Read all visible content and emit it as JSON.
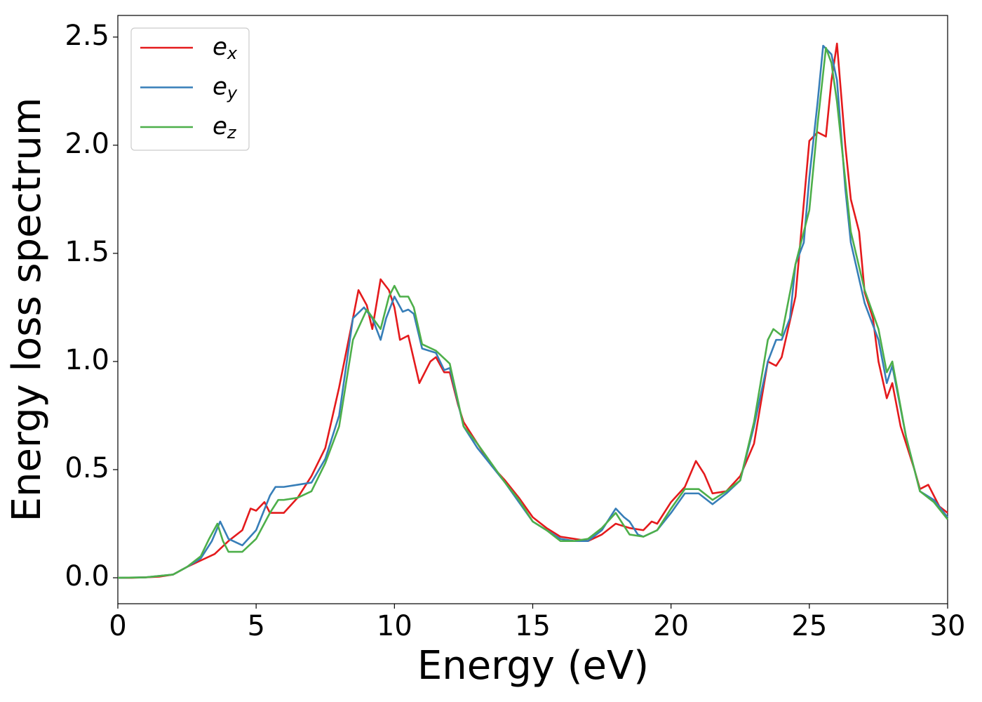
{
  "chart_data": {
    "type": "line",
    "xlabel": "Energy (eV)",
    "ylabel": "Energy loss spectrum",
    "xlim": [
      0,
      30
    ],
    "xticks": [
      0,
      5,
      10,
      15,
      20,
      25,
      30
    ],
    "ylim": [
      -0.12,
      2.6
    ],
    "yticks": [
      {
        "value": 0,
        "label": "0.0"
      },
      {
        "value": 0.5,
        "label": "0.5"
      },
      {
        "value": 1,
        "label": "1.0"
      },
      {
        "value": 1.5,
        "label": "1.5"
      },
      {
        "value": 2,
        "label": "2.0"
      },
      {
        "value": 2.5,
        "label": "2.5"
      }
    ],
    "grid": false,
    "legend": "upper left",
    "series": [
      {
        "name": "e_x",
        "color": "#e41a1c",
        "x": [
          0,
          0.5,
          1,
          1.5,
          2,
          2.5,
          3,
          3.5,
          4,
          4.5,
          4.8,
          5,
          5.3,
          5.5,
          6,
          6.5,
          7,
          7.5,
          8,
          8.5,
          8.7,
          9,
          9.2,
          9.5,
          9.8,
          10,
          10.2,
          10.5,
          10.9,
          11.3,
          11.5,
          11.8,
          12,
          12.3,
          12.5,
          13,
          13.5,
          14,
          14.5,
          15,
          15.5,
          16,
          16.5,
          17,
          17.5,
          18,
          18.5,
          19,
          19.3,
          19.5,
          20,
          20.5,
          20.9,
          21.2,
          21.5,
          22,
          22.5,
          23,
          23.5,
          23.8,
          24,
          24.5,
          25,
          25.3,
          25.6,
          25.8,
          26,
          26.3,
          26.5,
          26.8,
          27,
          27.3,
          27.5,
          27.8,
          28,
          28.3,
          28.8,
          29,
          29.3,
          29.7,
          30
        ],
        "values": [
          0,
          0,
          0.002,
          0.005,
          0.015,
          0.05,
          0.08,
          0.11,
          0.17,
          0.22,
          0.32,
          0.31,
          0.35,
          0.3,
          0.3,
          0.37,
          0.47,
          0.6,
          0.88,
          1.2,
          1.33,
          1.26,
          1.15,
          1.38,
          1.33,
          1.25,
          1.1,
          1.12,
          0.9,
          1.0,
          1.02,
          0.95,
          0.95,
          0.8,
          0.72,
          0.62,
          0.52,
          0.45,
          0.37,
          0.28,
          0.23,
          0.19,
          0.18,
          0.17,
          0.2,
          0.25,
          0.23,
          0.22,
          0.26,
          0.25,
          0.35,
          0.42,
          0.54,
          0.48,
          0.39,
          0.4,
          0.47,
          0.62,
          1.0,
          0.98,
          1.02,
          1.3,
          2.02,
          2.06,
          2.04,
          2.3,
          2.47,
          2.0,
          1.75,
          1.6,
          1.32,
          1.2,
          1.0,
          0.83,
          0.9,
          0.7,
          0.5,
          0.41,
          0.43,
          0.33,
          0.3
        ]
      },
      {
        "name": "e_y",
        "color": "#377eb8",
        "x": [
          0,
          1,
          2,
          2.5,
          3,
          3.4,
          3.7,
          4,
          4.5,
          5,
          5.5,
          5.7,
          6,
          6.5,
          7,
          7.5,
          8,
          8.5,
          8.9,
          9.2,
          9.5,
          9.7,
          10,
          10.3,
          10.5,
          10.7,
          11,
          11.5,
          11.8,
          12,
          12.5,
          13,
          13.5,
          14,
          14.5,
          15,
          15.5,
          16,
          16.5,
          17,
          17.5,
          18,
          18.3,
          18.5,
          18.8,
          19,
          19.5,
          20,
          20.5,
          21,
          21.5,
          22,
          22.5,
          23,
          23.5,
          23.8,
          24,
          24.3,
          24.5,
          24.8,
          25,
          25.3,
          25.5,
          25.8,
          26,
          26.3,
          26.5,
          27,
          27.5,
          27.8,
          28,
          28.5,
          29,
          29.5,
          30
        ],
        "values": [
          0,
          0.002,
          0.015,
          0.05,
          0.09,
          0.17,
          0.26,
          0.18,
          0.15,
          0.22,
          0.38,
          0.42,
          0.42,
          0.43,
          0.44,
          0.55,
          0.75,
          1.2,
          1.25,
          1.2,
          1.1,
          1.2,
          1.3,
          1.23,
          1.24,
          1.22,
          1.06,
          1.04,
          0.96,
          0.97,
          0.7,
          0.6,
          0.52,
          0.44,
          0.35,
          0.26,
          0.22,
          0.18,
          0.17,
          0.17,
          0.22,
          0.32,
          0.28,
          0.26,
          0.2,
          0.19,
          0.22,
          0.3,
          0.39,
          0.39,
          0.34,
          0.39,
          0.45,
          0.7,
          1.0,
          1.1,
          1.1,
          1.2,
          1.45,
          1.55,
          1.85,
          2.2,
          2.46,
          2.42,
          2.3,
          1.8,
          1.55,
          1.27,
          1.1,
          0.9,
          0.98,
          0.65,
          0.4,
          0.36,
          0.28
        ]
      },
      {
        "name": "e_z",
        "color": "#4daf4a",
        "x": [
          0,
          1,
          2,
          2.5,
          3,
          3.3,
          3.6,
          3.8,
          4,
          4.5,
          5,
          5.5,
          5.8,
          6,
          6.5,
          7,
          7.5,
          8,
          8.5,
          9,
          9.5,
          9.8,
          10,
          10.2,
          10.5,
          10.7,
          11,
          11.5,
          12,
          12.5,
          13,
          13.5,
          14,
          14.5,
          15,
          15.5,
          16,
          16.5,
          17,
          17.5,
          18,
          18.5,
          19,
          19.5,
          20,
          20.5,
          21,
          21.5,
          22,
          22.5,
          23,
          23.5,
          23.7,
          24,
          24.5,
          25,
          25.3,
          25.6,
          25.8,
          26,
          26.5,
          27,
          27.5,
          27.8,
          28,
          28.5,
          29,
          29.5,
          30
        ],
        "values": [
          0,
          0.002,
          0.015,
          0.05,
          0.1,
          0.18,
          0.25,
          0.17,
          0.12,
          0.12,
          0.18,
          0.3,
          0.36,
          0.36,
          0.37,
          0.4,
          0.53,
          0.7,
          1.1,
          1.24,
          1.15,
          1.3,
          1.35,
          1.3,
          1.3,
          1.25,
          1.08,
          1.05,
          0.99,
          0.7,
          0.62,
          0.53,
          0.44,
          0.36,
          0.26,
          0.22,
          0.17,
          0.17,
          0.18,
          0.23,
          0.3,
          0.2,
          0.19,
          0.22,
          0.32,
          0.41,
          0.41,
          0.36,
          0.4,
          0.45,
          0.72,
          1.1,
          1.15,
          1.12,
          1.45,
          1.7,
          2.1,
          2.45,
          2.38,
          2.2,
          1.6,
          1.33,
          1.15,
          0.95,
          1.0,
          0.65,
          0.4,
          0.35,
          0.27
        ]
      }
    ]
  }
}
